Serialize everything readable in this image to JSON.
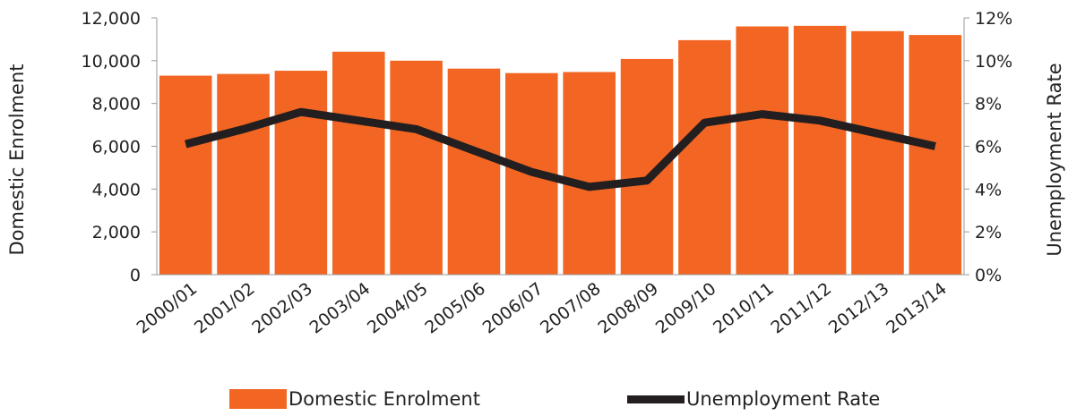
{
  "chart_data": {
    "type": "bar",
    "categories": [
      "2000/01",
      "2001/02",
      "2002/03",
      "2003/04",
      "2004/05",
      "2005/06",
      "2006/07",
      "2007/08",
      "2008/09",
      "2009/10",
      "2010/11",
      "2011/12",
      "2012/13",
      "2013/14"
    ],
    "series": [
      {
        "name": "Domestic Enrolment",
        "type": "bar",
        "axis": "left",
        "color": "#f26522",
        "values": [
          9300,
          9380,
          9530,
          10420,
          10000,
          9630,
          9420,
          9470,
          10080,
          10960,
          11600,
          11630,
          11380,
          11200
        ]
      },
      {
        "name": "Unemployment Rate",
        "type": "line",
        "axis": "right",
        "color": "#231f20",
        "values": [
          6.1,
          6.8,
          7.6,
          7.2,
          6.8,
          5.8,
          4.8,
          4.1,
          4.4,
          7.1,
          7.5,
          7.2,
          6.6,
          6.0
        ]
      }
    ],
    "ylabel": "Domestic Enrolment",
    "y2label": "Unemployment Rate",
    "ylim": [
      0,
      12000
    ],
    "y_ticks": [
      "0",
      "2,000",
      "4,000",
      "6,000",
      "8,000",
      "10,000",
      "12,000"
    ],
    "y2lim": [
      0,
      12
    ],
    "y2_ticks": [
      "0%",
      "2%",
      "4%",
      "6%",
      "8%",
      "10%",
      "12%"
    ],
    "grid": false,
    "legend_position": "bottom"
  }
}
